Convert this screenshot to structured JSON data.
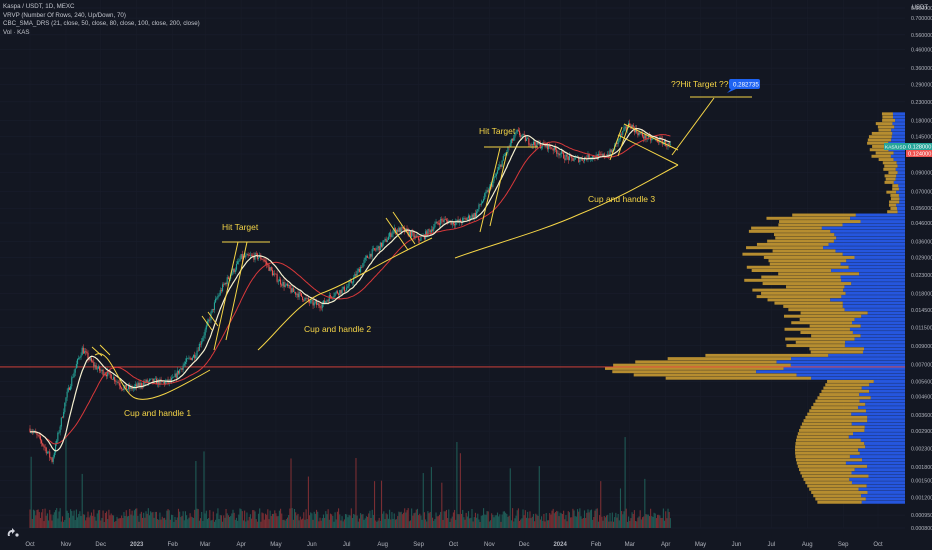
{
  "legend": {
    "symbol": "Kaspa / USDT, 1D, MEXC",
    "vrvp": "VRVP (Number Of Rows, 240, Up/Down, 70)",
    "cbc": "CBC_SMA_DRS (21, close, 50, close, 80, close, 100, close, 200, close)",
    "vol": "Vol · KAS"
  },
  "price_axis": {
    "currency": "USDT",
    "ticks": [
      "0.800000",
      "0.700000",
      "0.560000",
      "0.460000",
      "0.360000",
      "0.290000",
      "0.230000",
      "0.180000",
      "0.145000",
      "0.115000",
      "0.090000",
      "0.070000",
      "0.056000",
      "0.046000",
      "0.036000",
      "0.029000",
      "0.023000",
      "0.018000",
      "0.014500",
      "0.011500",
      "0.009000",
      "0.007000",
      "0.005600",
      "0.004600",
      "0.003600",
      "0.002900",
      "0.002300",
      "0.001800",
      "0.001500",
      "0.001200",
      "0.000950",
      "0.000800"
    ],
    "price_badge": "0.128000",
    "price_badge2": "0.124000"
  },
  "time_axis": [
    "Oct",
    "Nov",
    "Dec",
    "2023",
    "Feb",
    "Mar",
    "Apr",
    "May",
    "Jun",
    "Jul",
    "Aug",
    "Sep",
    "Oct",
    "Nov",
    "Dec",
    "2024",
    "Feb",
    "Mar",
    "Apr",
    "May",
    "Jun",
    "Jul",
    "Aug",
    "Sep",
    "Oct"
  ],
  "annotations": {
    "hit1": "Hit Target",
    "hit2": "Hit Target",
    "hit3": "??Hit Target ???",
    "target_price": "0.282735",
    "cup1": "Cup and handle 1",
    "cup2": "Cup and handle 2",
    "cup3": "Cup and handle 3"
  },
  "colors": {
    "background": "#131722",
    "up": "#26a69a",
    "down": "#ef5350",
    "sma_fast": "#f5f0d0",
    "sma_slow": "#e53935",
    "drawing": "#f5d547",
    "vrvp_up": "#2962ff",
    "vrvp_down": "#d4a232",
    "hline": "#e8453c",
    "target_label": "#1e63f2"
  },
  "chart_data": {
    "type": "candlestick",
    "title": "Kaspa / USDT, 1D, MEXC",
    "y_scale": "log",
    "ylim": [
      0.0008,
      0.8
    ],
    "x_range": [
      "2022-10",
      "2024-10"
    ],
    "price_path": [
      {
        "x": "2022-10-01",
        "y": 0.003
      },
      {
        "x": "2022-10-20",
        "y": 0.002
      },
      {
        "x": "2022-11-01",
        "y": 0.0045
      },
      {
        "x": "2022-11-15",
        "y": 0.0085
      },
      {
        "x": "2022-12-01",
        "y": 0.0065
      },
      {
        "x": "2022-12-20",
        "y": 0.0052
      },
      {
        "x": "2023-01-10",
        "y": 0.0054
      },
      {
        "x": "2023-02-01",
        "y": 0.0058
      },
      {
        "x": "2023-02-20",
        "y": 0.008
      },
      {
        "x": "2023-03-10",
        "y": 0.016
      },
      {
        "x": "2023-04-01",
        "y": 0.03
      },
      {
        "x": "2023-04-20",
        "y": 0.028
      },
      {
        "x": "2023-05-15",
        "y": 0.018
      },
      {
        "x": "2023-06-10",
        "y": 0.0155
      },
      {
        "x": "2023-07-01",
        "y": 0.02
      },
      {
        "x": "2023-07-20",
        "y": 0.029
      },
      {
        "x": "2023-08-10",
        "y": 0.042
      },
      {
        "x": "2023-09-01",
        "y": 0.038
      },
      {
        "x": "2023-09-20",
        "y": 0.046
      },
      {
        "x": "2023-10-20",
        "y": 0.05
      },
      {
        "x": "2023-11-10",
        "y": 0.1
      },
      {
        "x": "2023-11-25",
        "y": 0.15
      },
      {
        "x": "2023-12-20",
        "y": 0.125
      },
      {
        "x": "2024-01-20",
        "y": 0.105
      },
      {
        "x": "2024-02-15",
        "y": 0.12
      },
      {
        "x": "2024-03-01",
        "y": 0.17
      },
      {
        "x": "2024-03-20",
        "y": 0.138
      },
      {
        "x": "2024-04-05",
        "y": 0.128
      }
    ],
    "last_price": 0.128,
    "target": 0.282735,
    "hline": 0.0068,
    "series": [
      {
        "name": "Candles"
      },
      {
        "name": "SMA fast"
      },
      {
        "name": "SMA slow"
      },
      {
        "name": "Volume"
      },
      {
        "name": "VRVP"
      }
    ]
  }
}
